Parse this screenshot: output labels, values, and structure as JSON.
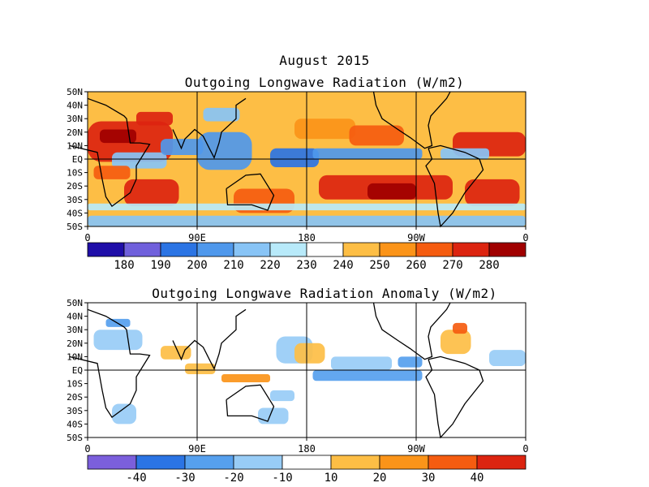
{
  "chart_data": [
    {
      "type": "heatmap",
      "title": "August 2015",
      "subtitle": "Outgoing Longwave Radiation (W/m2)",
      "x_ticks": [
        "0",
        "90E",
        "180",
        "90W",
        "0"
      ],
      "y_ticks": [
        "50N",
        "40N",
        "30N",
        "20N",
        "10N",
        "EQ",
        "10S",
        "20S",
        "30S",
        "40S",
        "50S"
      ],
      "lon_range": [
        0,
        360
      ],
      "lat_range": [
        -50,
        50
      ],
      "colorbar": {
        "labels": [
          "180",
          "190",
          "200",
          "210",
          "220",
          "230",
          "240",
          "250",
          "260",
          "270",
          "280"
        ],
        "colors": [
          "#1f0ea8",
          "#7060dc",
          "#2b74e4",
          "#4f98ec",
          "#88c4f6",
          "#b8eafa",
          "#ffffff",
          "#fdbe45",
          "#fb9419",
          "#f55c10",
          "#dc2410",
          "#a00000"
        ]
      },
      "field_regions": [
        {
          "lon": 0,
          "lat": 28,
          "w": 70,
          "h": 30,
          "bin": 10
        },
        {
          "lon": 10,
          "lat": 22,
          "w": 30,
          "h": 10,
          "bin": 11
        },
        {
          "lon": 40,
          "lat": 35,
          "w": 30,
          "h": 10,
          "bin": 10
        },
        {
          "lon": 20,
          "lat": 5,
          "w": 45,
          "h": 12,
          "bin": 4
        },
        {
          "lon": 60,
          "lat": 15,
          "w": 35,
          "h": 12,
          "bin": 3
        },
        {
          "lon": 90,
          "lat": 20,
          "w": 45,
          "h": 28,
          "bin": 3
        },
        {
          "lon": 95,
          "lat": 38,
          "w": 30,
          "h": 10,
          "bin": 4
        },
        {
          "lon": 30,
          "lat": -15,
          "w": 45,
          "h": 20,
          "bin": 10
        },
        {
          "lon": 5,
          "lat": -5,
          "w": 30,
          "h": 10,
          "bin": 9
        },
        {
          "lon": 120,
          "lat": -22,
          "w": 50,
          "h": 18,
          "bin": 9
        },
        {
          "lon": 150,
          "lat": 8,
          "w": 40,
          "h": 14,
          "bin": 2
        },
        {
          "lon": 170,
          "lat": 30,
          "w": 50,
          "h": 15,
          "bin": 8
        },
        {
          "lon": 185,
          "lat": 8,
          "w": 90,
          "h": 8,
          "bin": 3
        },
        {
          "lon": 190,
          "lat": -12,
          "w": 110,
          "h": 18,
          "bin": 10
        },
        {
          "lon": 230,
          "lat": -18,
          "w": 40,
          "h": 12,
          "bin": 11
        },
        {
          "lon": 215,
          "lat": 25,
          "w": 45,
          "h": 15,
          "bin": 9
        },
        {
          "lon": 300,
          "lat": 20,
          "w": 60,
          "h": 18,
          "bin": 10
        },
        {
          "lon": 290,
          "lat": 8,
          "w": 40,
          "h": 8,
          "bin": 4
        },
        {
          "lon": 310,
          "lat": -15,
          "w": 45,
          "h": 20,
          "bin": 10
        },
        {
          "lon": 0,
          "lat": -42,
          "w": 360,
          "h": 8,
          "bin": 4
        },
        {
          "lon": 0,
          "lat": -33,
          "w": 360,
          "h": 5,
          "bin": 5
        }
      ]
    },
    {
      "type": "heatmap",
      "title": "Outgoing Longwave Radiation Anomaly (W/m2)",
      "x_ticks": [
        "0",
        "90E",
        "180",
        "90W",
        "0"
      ],
      "y_ticks": [
        "50N",
        "40N",
        "30N",
        "20N",
        "10N",
        "EQ",
        "10S",
        "20S",
        "30S",
        "40S",
        "50S"
      ],
      "lon_range": [
        0,
        360
      ],
      "lat_range": [
        -50,
        50
      ],
      "colorbar": {
        "labels": [
          "-40",
          "-30",
          "-20",
          "-10",
          "10",
          "20",
          "30",
          "40"
        ],
        "colors": [
          "#7b5fdc",
          "#2b74e4",
          "#56a0ee",
          "#98ccf6",
          "#ffffff",
          "#fdbe45",
          "#fb9419",
          "#f55c10",
          "#dc2410"
        ]
      },
      "field_regions": [
        {
          "lon": 5,
          "lat": 30,
          "w": 40,
          "h": 15,
          "bin": 3
        },
        {
          "lon": 15,
          "lat": 38,
          "w": 20,
          "h": 6,
          "bin": 2
        },
        {
          "lon": 60,
          "lat": 18,
          "w": 25,
          "h": 10,
          "bin": 5
        },
        {
          "lon": 80,
          "lat": 5,
          "w": 25,
          "h": 8,
          "bin": 5
        },
        {
          "lon": 110,
          "lat": -3,
          "w": 40,
          "h": 6,
          "bin": 6
        },
        {
          "lon": 150,
          "lat": -15,
          "w": 20,
          "h": 8,
          "bin": 3
        },
        {
          "lon": 155,
          "lat": 25,
          "w": 30,
          "h": 20,
          "bin": 3
        },
        {
          "lon": 170,
          "lat": 20,
          "w": 25,
          "h": 15,
          "bin": 5
        },
        {
          "lon": 185,
          "lat": 0,
          "w": 90,
          "h": 8,
          "bin": 2
        },
        {
          "lon": 200,
          "lat": 10,
          "w": 50,
          "h": 10,
          "bin": 3
        },
        {
          "lon": 255,
          "lat": 10,
          "w": 20,
          "h": 8,
          "bin": 2
        },
        {
          "lon": 290,
          "lat": 30,
          "w": 25,
          "h": 18,
          "bin": 5
        },
        {
          "lon": 300,
          "lat": 35,
          "w": 12,
          "h": 8,
          "bin": 7
        },
        {
          "lon": 330,
          "lat": 15,
          "w": 30,
          "h": 12,
          "bin": 3
        },
        {
          "lon": 20,
          "lat": -25,
          "w": 20,
          "h": 15,
          "bin": 3
        },
        {
          "lon": 140,
          "lat": -28,
          "w": 25,
          "h": 12,
          "bin": 3
        }
      ]
    }
  ]
}
